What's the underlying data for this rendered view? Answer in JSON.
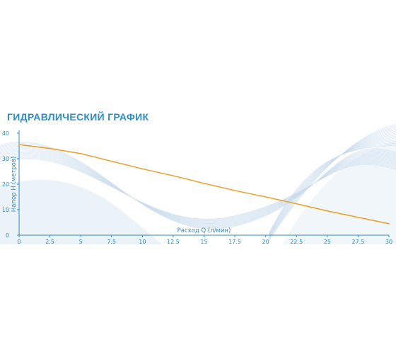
{
  "colors": {
    "title": "#2a8fc9",
    "axis": "#2f8ac4",
    "text": "#2f8ac4",
    "line": "#e8a534",
    "wave": "#c9dcec"
  },
  "chart_data": {
    "type": "line",
    "title": "ГИДРАВЛИЧЕСКИЙ ГРАФИК",
    "xlabel": "Расход Q (л/мин)",
    "ylabel": "Напор Н (метров)",
    "xlim": [
      0,
      30
    ],
    "ylim": [
      0,
      40
    ],
    "x_ticks": [
      "0",
      "2.5",
      "5",
      "7.5",
      "10",
      "12.5",
      "15",
      "17.5",
      "20",
      "22.5",
      "25",
      "27.5",
      "30"
    ],
    "y_ticks": [
      "0",
      "10",
      "20",
      "30",
      "40"
    ],
    "grid": false,
    "series": [
      {
        "x": [
          0,
          2.5,
          5,
          7.5,
          10,
          12.5,
          15,
          17.5,
          20,
          22.5,
          25,
          27.5,
          30
        ],
        "y": [
          35.5,
          34.0,
          32.0,
          29.0,
          26.0,
          23.3,
          20.3,
          17.5,
          15.0,
          12.3,
          9.5,
          7.0,
          4.5
        ]
      }
    ]
  }
}
